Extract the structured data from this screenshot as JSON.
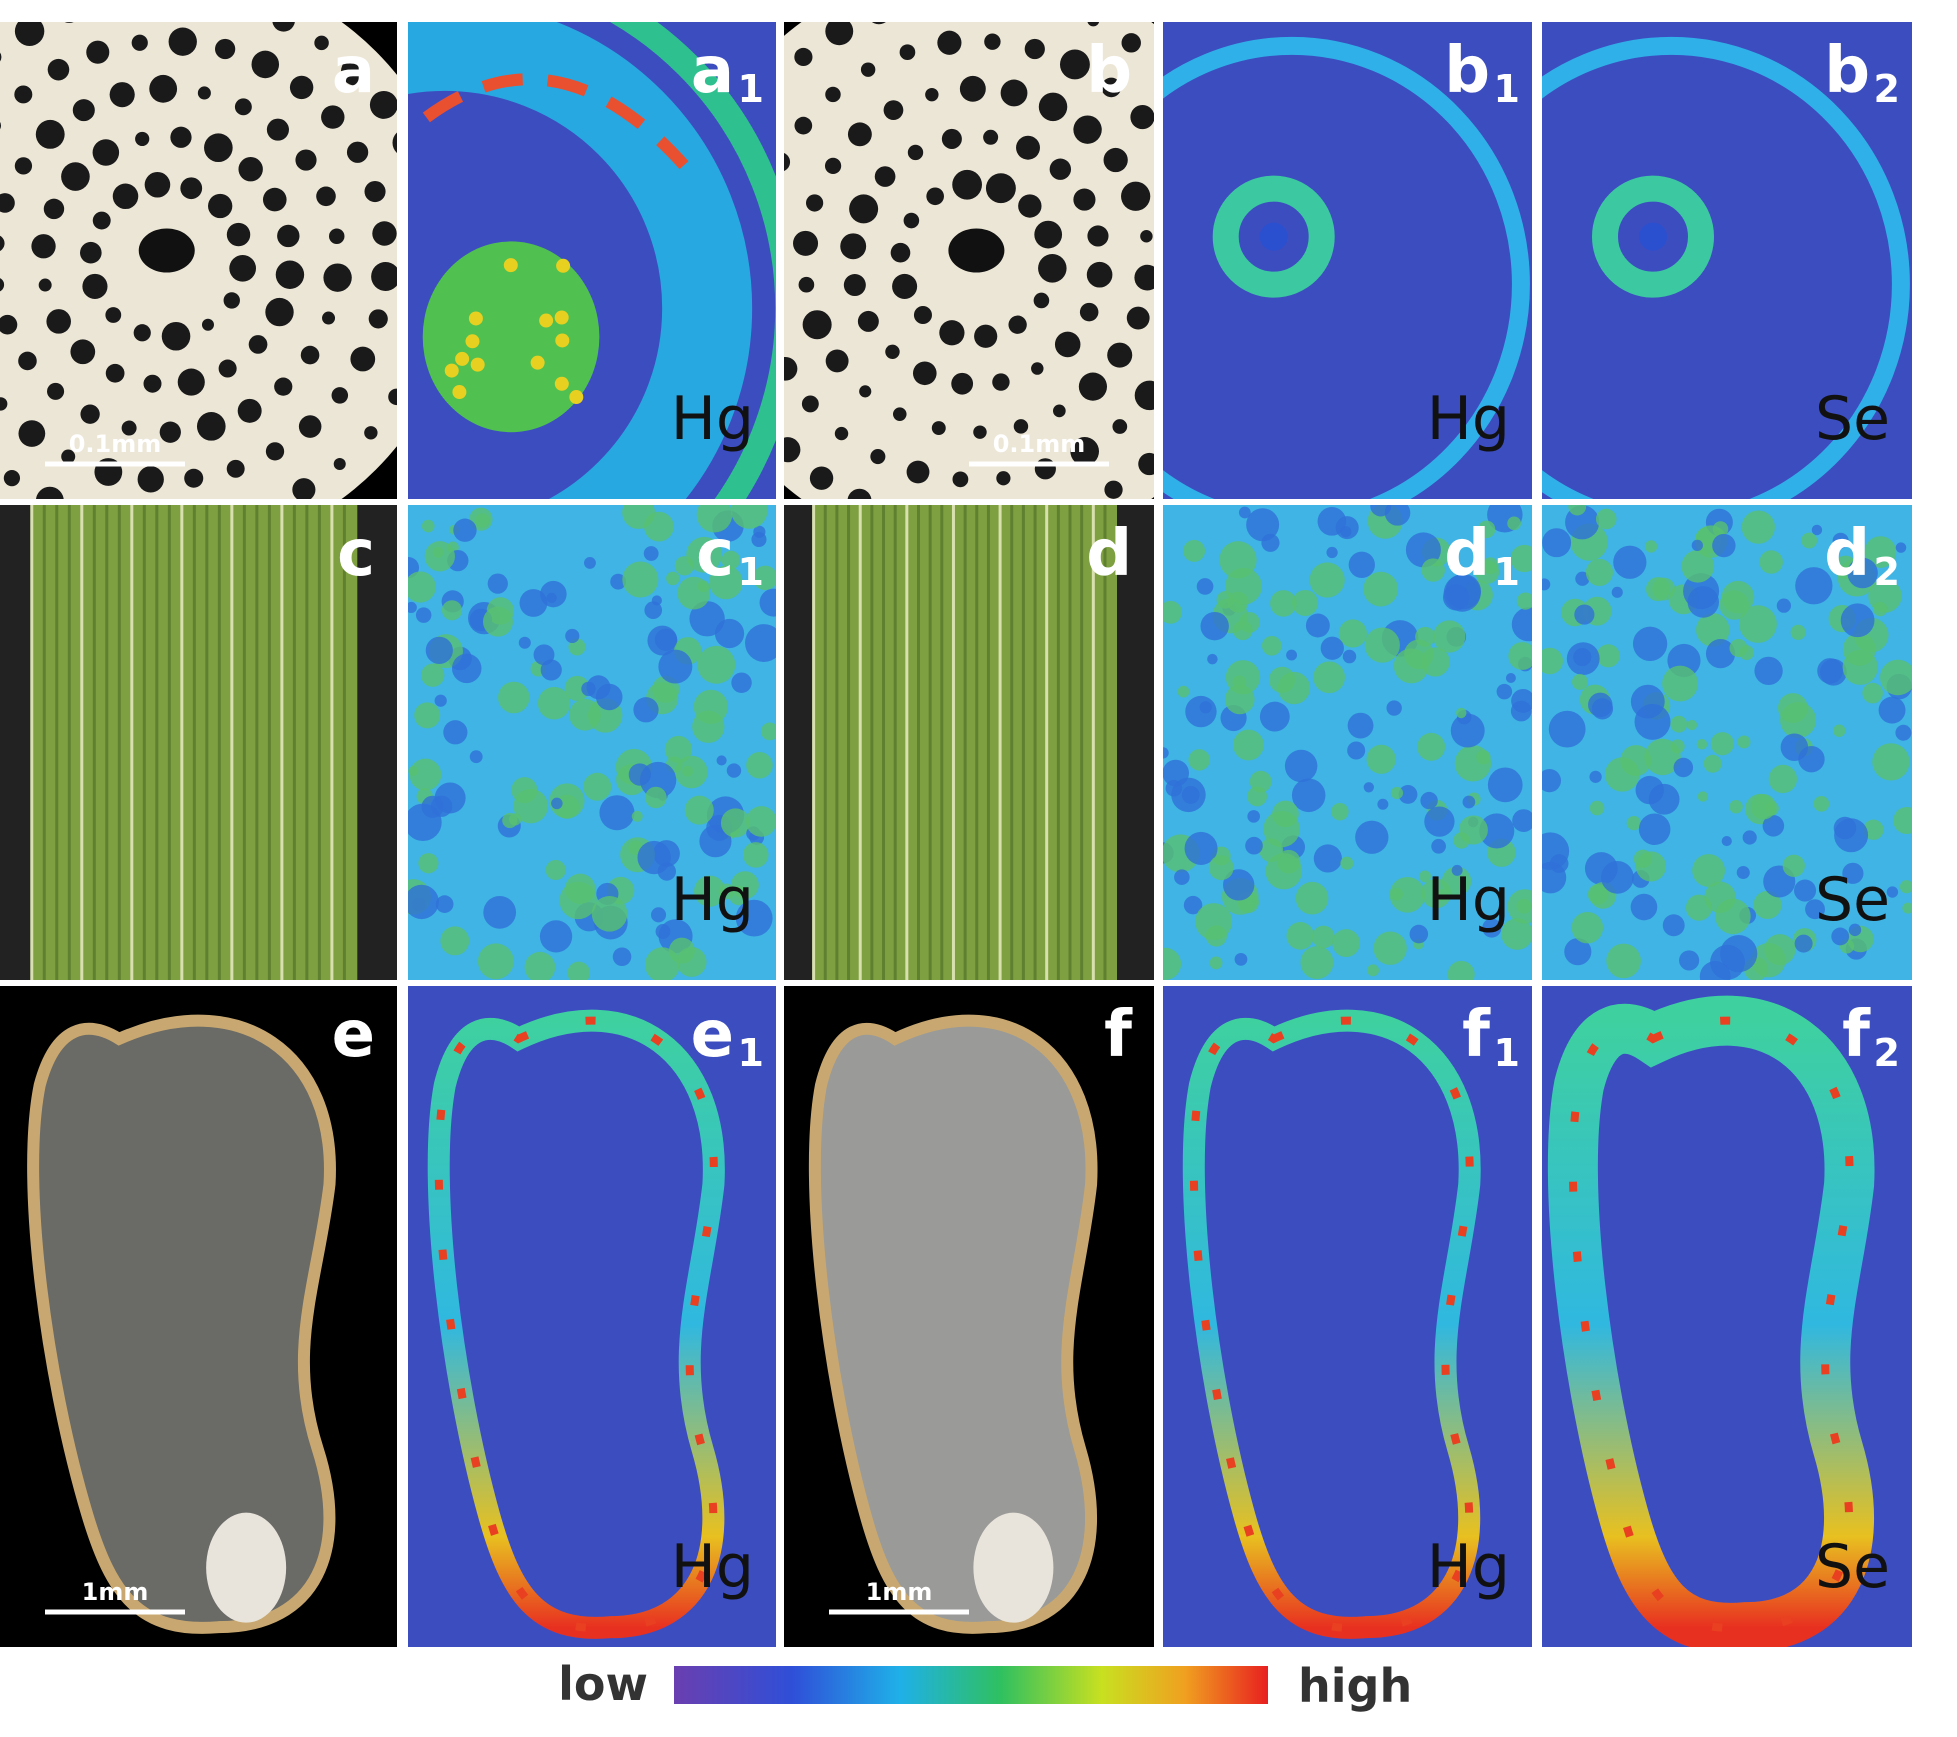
{
  "panels": [
    {
      "label": "a",
      "scale_bar": "0.1mm"
    },
    {
      "label": "a",
      "index": "1",
      "element": "Hg"
    },
    {
      "label": "b",
      "scale_bar": "0.1mm"
    },
    {
      "label": "b",
      "index": "1",
      "element": "Hg"
    },
    {
      "label": "b",
      "index": "2",
      "element": "Se"
    },
    {
      "label": "c"
    },
    {
      "label": "c",
      "index": "1",
      "element": "Hg"
    },
    {
      "label": "d"
    },
    {
      "label": "d",
      "index": "1",
      "element": "Hg"
    },
    {
      "label": "d",
      "index": "2",
      "element": "Se"
    },
    {
      "label": "e",
      "scale_bar": "1mm"
    },
    {
      "label": "e",
      "index": "1",
      "element": "Hg"
    },
    {
      "label": "f",
      "scale_bar": "1mm"
    },
    {
      "label": "f",
      "index": "1",
      "element": "Hg"
    },
    {
      "label": "f",
      "index": "2",
      "element": "Se"
    }
  ],
  "colorbar": {
    "low_label": "low",
    "high_label": "high"
  }
}
